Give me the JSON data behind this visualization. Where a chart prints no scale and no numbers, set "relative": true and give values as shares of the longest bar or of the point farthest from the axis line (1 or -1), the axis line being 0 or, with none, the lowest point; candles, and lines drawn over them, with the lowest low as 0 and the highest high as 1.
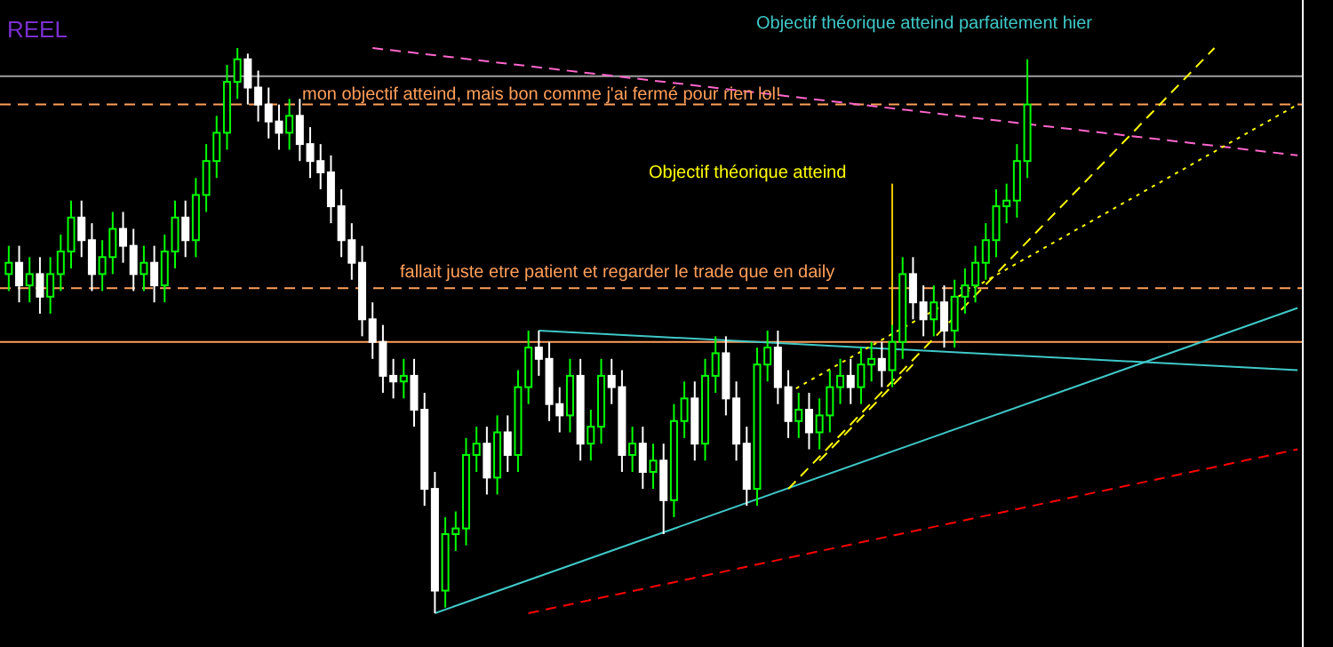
{
  "chart_data": {
    "type": "candlestick",
    "title": "REEL",
    "relative": true,
    "categories": [
      null,
      null,
      null,
      null,
      null,
      null,
      null,
      null,
      null,
      null,
      null,
      null,
      null,
      null,
      null,
      null,
      null,
      null,
      null,
      null,
      null,
      null,
      null,
      null,
      null,
      null,
      null,
      null,
      null,
      null,
      null,
      null,
      null,
      null,
      null,
      null,
      null,
      null,
      null,
      null,
      null,
      null,
      null,
      null,
      null,
      null,
      null,
      null,
      null,
      null,
      null,
      null,
      null,
      null,
      null,
      null,
      null,
      null,
      null,
      null,
      null,
      null,
      null,
      null,
      null,
      null,
      null,
      null,
      null,
      null,
      null,
      null,
      null,
      null,
      null,
      null,
      null,
      null,
      null,
      null,
      null,
      null,
      null,
      null,
      null,
      null,
      null,
      null,
      null,
      null,
      null,
      null,
      null,
      null,
      null,
      null,
      null,
      null,
      null,
      null,
      null,
      null,
      null,
      null,
      null,
      null,
      null,
      null,
      null,
      null,
      null,
      null,
      null,
      null,
      null,
      null,
      null,
      null,
      null,
      null,
      null,
      null,
      null,
      null,
      null
    ],
    "ohlc": [
      [
        0.6,
        0.65,
        0.57,
        0.62
      ],
      [
        0.62,
        0.65,
        0.55,
        0.58
      ],
      [
        0.58,
        0.63,
        0.55,
        0.6
      ],
      [
        0.6,
        0.63,
        0.53,
        0.56
      ],
      [
        0.56,
        0.63,
        0.53,
        0.6
      ],
      [
        0.6,
        0.67,
        0.57,
        0.64
      ],
      [
        0.64,
        0.73,
        0.61,
        0.7
      ],
      [
        0.7,
        0.73,
        0.63,
        0.66
      ],
      [
        0.66,
        0.69,
        0.57,
        0.6
      ],
      [
        0.6,
        0.66,
        0.57,
        0.63
      ],
      [
        0.63,
        0.71,
        0.6,
        0.68
      ],
      [
        0.68,
        0.71,
        0.62,
        0.65
      ],
      [
        0.65,
        0.68,
        0.57,
        0.6
      ],
      [
        0.6,
        0.65,
        0.57,
        0.62
      ],
      [
        0.62,
        0.65,
        0.55,
        0.58
      ],
      [
        0.58,
        0.67,
        0.55,
        0.64
      ],
      [
        0.64,
        0.73,
        0.61,
        0.7
      ],
      [
        0.7,
        0.73,
        0.63,
        0.66
      ],
      [
        0.66,
        0.77,
        0.63,
        0.74
      ],
      [
        0.74,
        0.83,
        0.71,
        0.8
      ],
      [
        0.8,
        0.88,
        0.77,
        0.85
      ],
      [
        0.85,
        0.97,
        0.82,
        0.94
      ],
      [
        0.94,
        1.0,
        0.91,
        0.98
      ],
      [
        0.98,
        0.99,
        0.9,
        0.93
      ],
      [
        0.93,
        0.96,
        0.87,
        0.9
      ],
      [
        0.9,
        0.93,
        0.84,
        0.87
      ],
      [
        0.87,
        0.9,
        0.82,
        0.85
      ],
      [
        0.85,
        0.91,
        0.82,
        0.88
      ],
      [
        0.88,
        0.91,
        0.8,
        0.83
      ],
      [
        0.83,
        0.86,
        0.77,
        0.8
      ],
      [
        0.8,
        0.83,
        0.75,
        0.78
      ],
      [
        0.78,
        0.81,
        0.69,
        0.72
      ],
      [
        0.72,
        0.75,
        0.63,
        0.66
      ],
      [
        0.66,
        0.69,
        0.59,
        0.62
      ],
      [
        0.62,
        0.65,
        0.49,
        0.52
      ],
      [
        0.52,
        0.55,
        0.45,
        0.48
      ],
      [
        0.48,
        0.51,
        0.39,
        0.42
      ],
      [
        0.42,
        0.45,
        0.38,
        0.41
      ],
      [
        0.41,
        0.45,
        0.38,
        0.42
      ],
      [
        0.42,
        0.45,
        0.33,
        0.36
      ],
      [
        0.36,
        0.39,
        0.19,
        0.22
      ],
      [
        0.22,
        0.25,
        0.0,
        0.04
      ],
      [
        0.04,
        0.17,
        0.01,
        0.14
      ],
      [
        0.14,
        0.18,
        0.11,
        0.15
      ],
      [
        0.15,
        0.31,
        0.12,
        0.28
      ],
      [
        0.28,
        0.33,
        0.25,
        0.3
      ],
      [
        0.3,
        0.33,
        0.21,
        0.24
      ],
      [
        0.24,
        0.35,
        0.21,
        0.32
      ],
      [
        0.32,
        0.35,
        0.25,
        0.28
      ],
      [
        0.28,
        0.43,
        0.25,
        0.4
      ],
      [
        0.4,
        0.5,
        0.37,
        0.47
      ],
      [
        0.47,
        0.5,
        0.42,
        0.45
      ],
      [
        0.45,
        0.48,
        0.34,
        0.37
      ],
      [
        0.37,
        0.4,
        0.32,
        0.35
      ],
      [
        0.35,
        0.45,
        0.32,
        0.42
      ],
      [
        0.42,
        0.45,
        0.27,
        0.3
      ],
      [
        0.3,
        0.36,
        0.27,
        0.33
      ],
      [
        0.33,
        0.45,
        0.3,
        0.42
      ],
      [
        0.42,
        0.45,
        0.37,
        0.4
      ],
      [
        0.4,
        0.43,
        0.25,
        0.28
      ],
      [
        0.28,
        0.33,
        0.25,
        0.3
      ],
      [
        0.3,
        0.33,
        0.22,
        0.25
      ],
      [
        0.25,
        0.3,
        0.22,
        0.27
      ],
      [
        0.27,
        0.3,
        0.14,
        0.2
      ],
      [
        0.2,
        0.37,
        0.17,
        0.34
      ],
      [
        0.34,
        0.41,
        0.31,
        0.38
      ],
      [
        0.38,
        0.41,
        0.27,
        0.3
      ],
      [
        0.3,
        0.45,
        0.27,
        0.42
      ],
      [
        0.42,
        0.49,
        0.39,
        0.46
      ],
      [
        0.46,
        0.49,
        0.35,
        0.38
      ],
      [
        0.38,
        0.41,
        0.27,
        0.3
      ],
      [
        0.3,
        0.33,
        0.19,
        0.22
      ],
      [
        0.22,
        0.47,
        0.19,
        0.44
      ],
      [
        0.44,
        0.5,
        0.41,
        0.47
      ],
      [
        0.47,
        0.5,
        0.37,
        0.4
      ],
      [
        0.4,
        0.43,
        0.31,
        0.34
      ],
      [
        0.34,
        0.39,
        0.31,
        0.36
      ],
      [
        0.36,
        0.39,
        0.29,
        0.32
      ],
      [
        0.32,
        0.38,
        0.29,
        0.35
      ],
      [
        0.35,
        0.43,
        0.32,
        0.4
      ],
      [
        0.4,
        0.45,
        0.37,
        0.42
      ],
      [
        0.42,
        0.45,
        0.37,
        0.4
      ],
      [
        0.4,
        0.47,
        0.37,
        0.44
      ],
      [
        0.44,
        0.48,
        0.41,
        0.45
      ],
      [
        0.45,
        0.48,
        0.4,
        0.43
      ],
      [
        0.43,
        0.51,
        0.4,
        0.48
      ],
      [
        0.48,
        0.63,
        0.45,
        0.6
      ],
      [
        0.6,
        0.63,
        0.52,
        0.55
      ],
      [
        0.55,
        0.58,
        0.49,
        0.52
      ],
      [
        0.52,
        0.58,
        0.49,
        0.55
      ],
      [
        0.55,
        0.58,
        0.47,
        0.5
      ],
      [
        0.5,
        0.59,
        0.47,
        0.56
      ],
      [
        0.56,
        0.61,
        0.53,
        0.58
      ],
      [
        0.58,
        0.65,
        0.55,
        0.62
      ],
      [
        0.62,
        0.69,
        0.59,
        0.66
      ],
      [
        0.66,
        0.75,
        0.63,
        0.72
      ],
      [
        0.72,
        0.76,
        0.69,
        0.73
      ],
      [
        0.73,
        0.83,
        0.7,
        0.8
      ],
      [
        0.8,
        0.98,
        0.77,
        0.9
      ],
      null,
      null,
      null,
      null,
      null,
      null,
      null,
      null,
      null,
      null,
      null,
      null,
      null,
      null,
      null,
      null,
      null,
      null,
      null,
      null,
      null,
      null,
      null,
      null,
      null,
      null
    ],
    "series": [
      {
        "type": "line",
        "color": "#40c8c8",
        "line_style": "solid",
        "values": [
          null,
          null,
          null,
          null,
          null,
          null,
          null,
          null,
          null,
          null,
          null,
          null,
          null,
          null,
          null,
          null,
          null,
          null,
          null,
          null,
          null,
          null,
          null,
          null,
          null,
          null,
          null,
          null,
          null,
          null,
          null,
          null,
          null,
          null,
          null,
          null,
          null,
          null,
          null,
          null,
          null,
          0,
          null,
          null,
          null,
          null,
          null,
          null,
          null,
          null,
          null,
          null,
          null,
          null,
          null,
          null,
          null,
          null,
          null,
          null,
          null,
          null,
          null,
          null,
          null,
          null,
          null,
          null,
          null,
          null,
          null,
          null,
          null,
          null,
          null,
          null,
          null,
          null,
          null,
          null,
          null,
          null,
          null,
          null,
          null,
          null,
          null,
          null,
          null,
          null,
          null,
          null,
          null,
          null,
          null,
          null,
          null,
          null,
          null,
          null,
          null,
          null,
          null,
          null,
          null,
          null,
          null,
          null,
          null,
          null,
          null,
          null,
          null,
          null,
          null,
          null,
          null,
          null,
          null,
          null,
          null,
          null,
          null,
          null,
          0.54
        ]
      },
      {
        "type": "line",
        "color": "#40c8c8",
        "line_style": "solid",
        "values": [
          null,
          null,
          null,
          null,
          null,
          null,
          null,
          null,
          null,
          null,
          null,
          null,
          null,
          null,
          null,
          null,
          null,
          null,
          null,
          null,
          null,
          null,
          null,
          null,
          null,
          null,
          null,
          null,
          null,
          null,
          null,
          null,
          null,
          null,
          null,
          null,
          null,
          null,
          null,
          null,
          null,
          null,
          null,
          null,
          null,
          null,
          null,
          null,
          null,
          null,
          null,
          0.5,
          null,
          null,
          null,
          null,
          null,
          null,
          null,
          null,
          null,
          null,
          null,
          null,
          null,
          null,
          null,
          null,
          null,
          null,
          null,
          null,
          null,
          null,
          null,
          null,
          null,
          null,
          null,
          null,
          null,
          null,
          null,
          null,
          null,
          null,
          null,
          null,
          null,
          null,
          null,
          null,
          null,
          null,
          null,
          null,
          null,
          null,
          null,
          null,
          null,
          null,
          null,
          null,
          null,
          null,
          null,
          null,
          null,
          null,
          null,
          null,
          null,
          null,
          null,
          null,
          null,
          null,
          null,
          null,
          null,
          null,
          null,
          null,
          0.43
        ]
      },
      {
        "type": "line",
        "color": "#ff66cc",
        "line_style": "dashed",
        "values": [
          null,
          null,
          null,
          null,
          null,
          null,
          null,
          null,
          null,
          null,
          null,
          null,
          null,
          null,
          null,
          null,
          null,
          null,
          null,
          null,
          null,
          null,
          null,
          null,
          null,
          null,
          null,
          null,
          null,
          null,
          null,
          null,
          null,
          null,
          null,
          1.0,
          null,
          null,
          null,
          null,
          null,
          null,
          null,
          null,
          null,
          null,
          null,
          null,
          null,
          null,
          null,
          null,
          null,
          null,
          null,
          null,
          null,
          null,
          null,
          null,
          null,
          null,
          null,
          null,
          null,
          null,
          null,
          null,
          null,
          null,
          null,
          null,
          null,
          null,
          null,
          null,
          null,
          null,
          null,
          null,
          null,
          null,
          null,
          null,
          null,
          null,
          null,
          null,
          null,
          null,
          null,
          null,
          null,
          null,
          null,
          null,
          null,
          null,
          null,
          null,
          null,
          null,
          null,
          null,
          null,
          null,
          null,
          null,
          null,
          null,
          null,
          null,
          null,
          null,
          null,
          null,
          null,
          null,
          null,
          null,
          null,
          null,
          null,
          null,
          0.81
        ]
      },
      {
        "type": "line",
        "color": "#ff0000",
        "line_style": "dashed",
        "values": [
          null,
          null,
          null,
          null,
          null,
          null,
          null,
          null,
          null,
          null,
          null,
          null,
          null,
          null,
          null,
          null,
          null,
          null,
          null,
          null,
          null,
          null,
          null,
          null,
          null,
          null,
          null,
          null,
          null,
          null,
          null,
          null,
          null,
          null,
          null,
          null,
          null,
          null,
          null,
          null,
          null,
          null,
          null,
          null,
          null,
          null,
          null,
          null,
          null,
          null,
          0,
          null,
          null,
          null,
          null,
          null,
          null,
          null,
          null,
          null,
          null,
          null,
          null,
          null,
          null,
          null,
          null,
          null,
          null,
          null,
          null,
          null,
          null,
          null,
          null,
          null,
          null,
          null,
          null,
          null,
          null,
          null,
          null,
          null,
          null,
          null,
          null,
          null,
          null,
          null,
          null,
          null,
          null,
          null,
          null,
          null,
          null,
          null,
          null,
          null,
          null,
          null,
          null,
          null,
          null,
          null,
          null,
          null,
          null,
          null,
          null,
          null,
          null,
          null,
          null,
          null,
          null,
          null,
          null,
          null,
          null,
          null,
          null,
          null,
          0.29
        ]
      },
      {
        "type": "line",
        "color": "#ffff00",
        "line_style": "dashed",
        "values": [
          null,
          null,
          null,
          null,
          null,
          null,
          null,
          null,
          null,
          null,
          null,
          null,
          null,
          null,
          null,
          null,
          null,
          null,
          null,
          null,
          null,
          null,
          null,
          null,
          null,
          null,
          null,
          null,
          null,
          null,
          null,
          null,
          null,
          null,
          null,
          null,
          null,
          null,
          null,
          null,
          null,
          null,
          null,
          null,
          null,
          null,
          null,
          null,
          null,
          null,
          null,
          null,
          null,
          null,
          null,
          null,
          null,
          null,
          null,
          null,
          null,
          null,
          null,
          null,
          null,
          null,
          null,
          null,
          null,
          null,
          null,
          null,
          null,
          null,
          null,
          0.22,
          null,
          null,
          null,
          null,
          null,
          null,
          null,
          null,
          null,
          null,
          null,
          null,
          null,
          null,
          null,
          null,
          null,
          null,
          null,
          null,
          null,
          null,
          null,
          null,
          null,
          null,
          null,
          null,
          null,
          null,
          null,
          null,
          null,
          null,
          null,
          null,
          null,
          null,
          null,
          null,
          1.0,
          null,
          null,
          null,
          null,
          null,
          null,
          null,
          null
        ]
      },
      {
        "type": "line",
        "color": "#ffff00",
        "line_style": "dotted",
        "values": [
          null,
          null,
          null,
          null,
          null,
          null,
          null,
          null,
          null,
          null,
          null,
          null,
          null,
          null,
          null,
          null,
          null,
          null,
          null,
          null,
          null,
          null,
          null,
          null,
          null,
          null,
          null,
          null,
          null,
          null,
          null,
          null,
          null,
          null,
          null,
          null,
          null,
          null,
          null,
          null,
          null,
          null,
          null,
          null,
          null,
          null,
          null,
          null,
          null,
          null,
          null,
          null,
          null,
          null,
          null,
          null,
          null,
          null,
          null,
          null,
          null,
          null,
          null,
          null,
          null,
          null,
          null,
          null,
          null,
          null,
          null,
          null,
          null,
          null,
          null,
          0.39,
          null,
          null,
          null,
          null,
          null,
          null,
          null,
          null,
          null,
          null,
          null,
          null,
          null,
          null,
          null,
          null,
          null,
          null,
          null,
          null,
          null,
          null,
          null,
          null,
          null,
          null,
          null,
          null,
          null,
          null,
          null,
          null,
          null,
          null,
          null,
          null,
          null,
          null,
          null,
          null,
          null,
          null,
          null,
          null,
          null,
          null,
          null,
          null,
          0.9
        ]
      },
      {
        "type": "line",
        "color": "#ffff00",
        "line_style": "dashed",
        "values": [
          null,
          null,
          null,
          null,
          null,
          null,
          null,
          null,
          null,
          null,
          null,
          null,
          null,
          null,
          null,
          null,
          null,
          null,
          null,
          null,
          null,
          null,
          null,
          null,
          null,
          null,
          null,
          null,
          null,
          null,
          null,
          null,
          null,
          null,
          null,
          null,
          null,
          null,
          null,
          null,
          null,
          null,
          null,
          null,
          null,
          null,
          null,
          null,
          null,
          null,
          null,
          null,
          null,
          null,
          null,
          null,
          null,
          null,
          null,
          null,
          null,
          null,
          null,
          null,
          null,
          null,
          null,
          null,
          null,
          null,
          null,
          null,
          null,
          null,
          null,
          null,
          null,
          null,
          0.27,
          null,
          null,
          null,
          null,
          null,
          null,
          null,
          null,
          0.44,
          null,
          null,
          null,
          null,
          null,
          null,
          null,
          null,
          null,
          null,
          null,
          null,
          null,
          null,
          null,
          null,
          null,
          null,
          null,
          null,
          null,
          null,
          null,
          null,
          null,
          null,
          null,
          null,
          null,
          null,
          null,
          null,
          null,
          null,
          null,
          null,
          null
        ]
      },
      {
        "type": "bar",
        "color": "#e6c800",
        "values": [
          null,
          null,
          null,
          null,
          null,
          null,
          null,
          null,
          null,
          null,
          null,
          null,
          null,
          null,
          null,
          null,
          null,
          null,
          null,
          null,
          null,
          null,
          null,
          null,
          null,
          null,
          null,
          null,
          null,
          null,
          null,
          null,
          null,
          null,
          null,
          null,
          null,
          null,
          null,
          null,
          null,
          null,
          null,
          null,
          null,
          null,
          null,
          null,
          null,
          null,
          null,
          null,
          null,
          null,
          null,
          null,
          null,
          null,
          null,
          null,
          null,
          null,
          null,
          null,
          null,
          null,
          null,
          null,
          null,
          null,
          null,
          null,
          null,
          null,
          null,
          null,
          null,
          null,
          null,
          null,
          null,
          null,
          null,
          null,
          null,
          0.33,
          null,
          null,
          null,
          null,
          null,
          null,
          null,
          null,
          null,
          null,
          null,
          null,
          null,
          null,
          null,
          null,
          null,
          null,
          null,
          null,
          null,
          null,
          null,
          null,
          null,
          null,
          null,
          null,
          null,
          null,
          null,
          null,
          null,
          null,
          null,
          null,
          null,
          null,
          null
        ],
        "base": [
          null,
          null,
          null,
          null,
          null,
          null,
          null,
          null,
          null,
          null,
          null,
          null,
          null,
          null,
          null,
          null,
          null,
          null,
          null,
          null,
          null,
          null,
          null,
          null,
          null,
          null,
          null,
          null,
          null,
          null,
          null,
          null,
          null,
          null,
          null,
          null,
          null,
          null,
          null,
          null,
          null,
          null,
          null,
          null,
          null,
          null,
          null,
          null,
          null,
          null,
          null,
          null,
          null,
          null,
          null,
          null,
          null,
          null,
          null,
          null,
          null,
          null,
          null,
          null,
          null,
          null,
          null,
          null,
          null,
          null,
          null,
          null,
          null,
          null,
          null,
          null,
          null,
          null,
          null,
          null,
          null,
          null,
          null,
          null,
          null,
          0.43,
          null,
          null,
          null,
          null,
          null,
          null,
          null,
          null,
          null,
          null,
          null,
          null,
          null,
          null,
          null,
          null,
          null,
          null,
          null,
          null,
          null,
          null,
          null,
          null,
          null,
          null,
          null,
          null,
          null,
          null,
          null,
          null,
          null,
          null,
          null,
          null,
          null,
          null,
          null
        ]
      }
    ],
    "ref_lines": [
      {
        "axis": "y",
        "value": 0.95,
        "color": "#a0a0a0",
        "line_style": "solid"
      },
      {
        "axis": "y",
        "value": 0.9,
        "color": "#ff9f5a",
        "line_style": "dashed"
      },
      {
        "axis": "y",
        "value": 0.575,
        "color": "#ff9f5a",
        "line_style": "dashed"
      },
      {
        "axis": "y",
        "value": 0.48,
        "color": "#ff9f5a",
        "line_style": "solid"
      }
    ],
    "annotations": [
      "Objectif théorique atteind parfaitement hier",
      "mon objectif atteind, mais bon comme j'ai fermé pour rien lol!",
      "Objectif théorique atteind",
      "fallait juste etre patient  et regarder le trade que en daily"
    ]
  }
}
